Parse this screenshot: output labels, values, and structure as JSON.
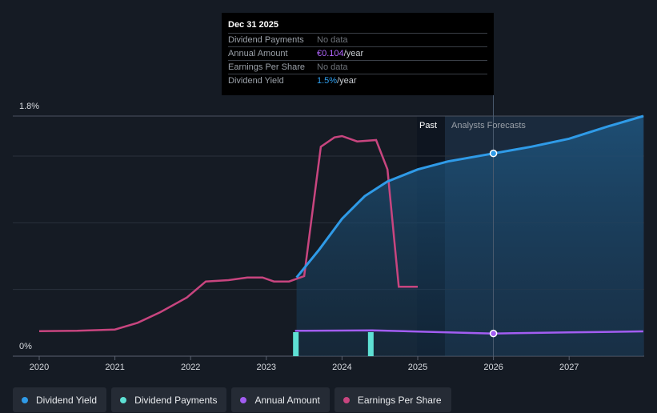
{
  "chart_data": {
    "type": "line",
    "y_axis": {
      "top_label": "1.8%",
      "bottom_label": "0%"
    },
    "x_tick_labels": [
      "2020",
      "2021",
      "2022",
      "2023",
      "2024",
      "2025",
      "2026",
      "2027"
    ],
    "region_labels": {
      "past": "Past",
      "forecast": "Analysts Forecasts"
    },
    "series": [
      {
        "name": "Earnings Per Share",
        "color": "#c8457f",
        "points": [
          [
            2020.0,
            0.187
          ],
          [
            2020.5,
            0.19
          ],
          [
            2021.0,
            0.2
          ],
          [
            2021.3,
            0.25
          ],
          [
            2021.6,
            0.33
          ],
          [
            2021.95,
            0.44
          ],
          [
            2022.2,
            0.56
          ],
          [
            2022.5,
            0.57
          ],
          [
            2022.75,
            0.59
          ],
          [
            2022.95,
            0.59
          ],
          [
            2023.1,
            0.56
          ],
          [
            2023.3,
            0.56
          ],
          [
            2023.5,
            0.6
          ],
          [
            2023.72,
            1.57
          ],
          [
            2023.9,
            1.64
          ],
          [
            2024.0,
            1.65
          ],
          [
            2024.2,
            1.61
          ],
          [
            2024.45,
            1.62
          ],
          [
            2024.6,
            1.4
          ],
          [
            2024.75,
            0.52
          ],
          [
            2025.0,
            0.52
          ]
        ]
      },
      {
        "name": "Dividend Yield",
        "color": "#2f9be8",
        "points": [
          [
            2023.4,
            0.59
          ],
          [
            2023.7,
            0.8
          ],
          [
            2024.0,
            1.03
          ],
          [
            2024.3,
            1.2
          ],
          [
            2024.6,
            1.31
          ],
          [
            2025.0,
            1.4
          ],
          [
            2025.4,
            1.46
          ],
          [
            2026.0,
            1.52
          ],
          [
            2026.5,
            1.57
          ],
          [
            2027.0,
            1.63
          ],
          [
            2027.5,
            1.72
          ],
          [
            2027.98,
            1.8
          ]
        ]
      },
      {
        "name": "Annual Amount",
        "color": "#a25df2",
        "points": [
          [
            2023.38,
            0.19
          ],
          [
            2024.0,
            0.192
          ],
          [
            2024.4,
            0.193
          ],
          [
            2025.0,
            0.185
          ],
          [
            2026.0,
            0.17
          ],
          [
            2027.0,
            0.178
          ],
          [
            2027.98,
            0.186
          ]
        ]
      },
      {
        "name": "Dividend Payments",
        "color": "#5ee0d4",
        "bars": [
          [
            2023.39,
            0.18
          ],
          [
            2024.38,
            0.18
          ]
        ]
      }
    ],
    "highlight_year": 2026.0
  },
  "tooltip": {
    "date": "Dec 31 2025",
    "rows": [
      {
        "label": "Dividend Payments",
        "value": "No data"
      },
      {
        "label": "Annual Amount",
        "value_highlight": "€0.104",
        "value_suffix": "/year"
      },
      {
        "label": "Earnings Per Share",
        "value": "No data"
      },
      {
        "label": "Dividend Yield",
        "value_highlight": "1.5%",
        "value_suffix": "/year"
      }
    ]
  },
  "legend": [
    {
      "label": "Dividend Yield",
      "color": "#2f9be8"
    },
    {
      "label": "Dividend Payments",
      "color": "#5ee0d4"
    },
    {
      "label": "Annual Amount",
      "color": "#a25df2"
    },
    {
      "label": "Earnings Per Share",
      "color": "#c8457f"
    }
  ]
}
